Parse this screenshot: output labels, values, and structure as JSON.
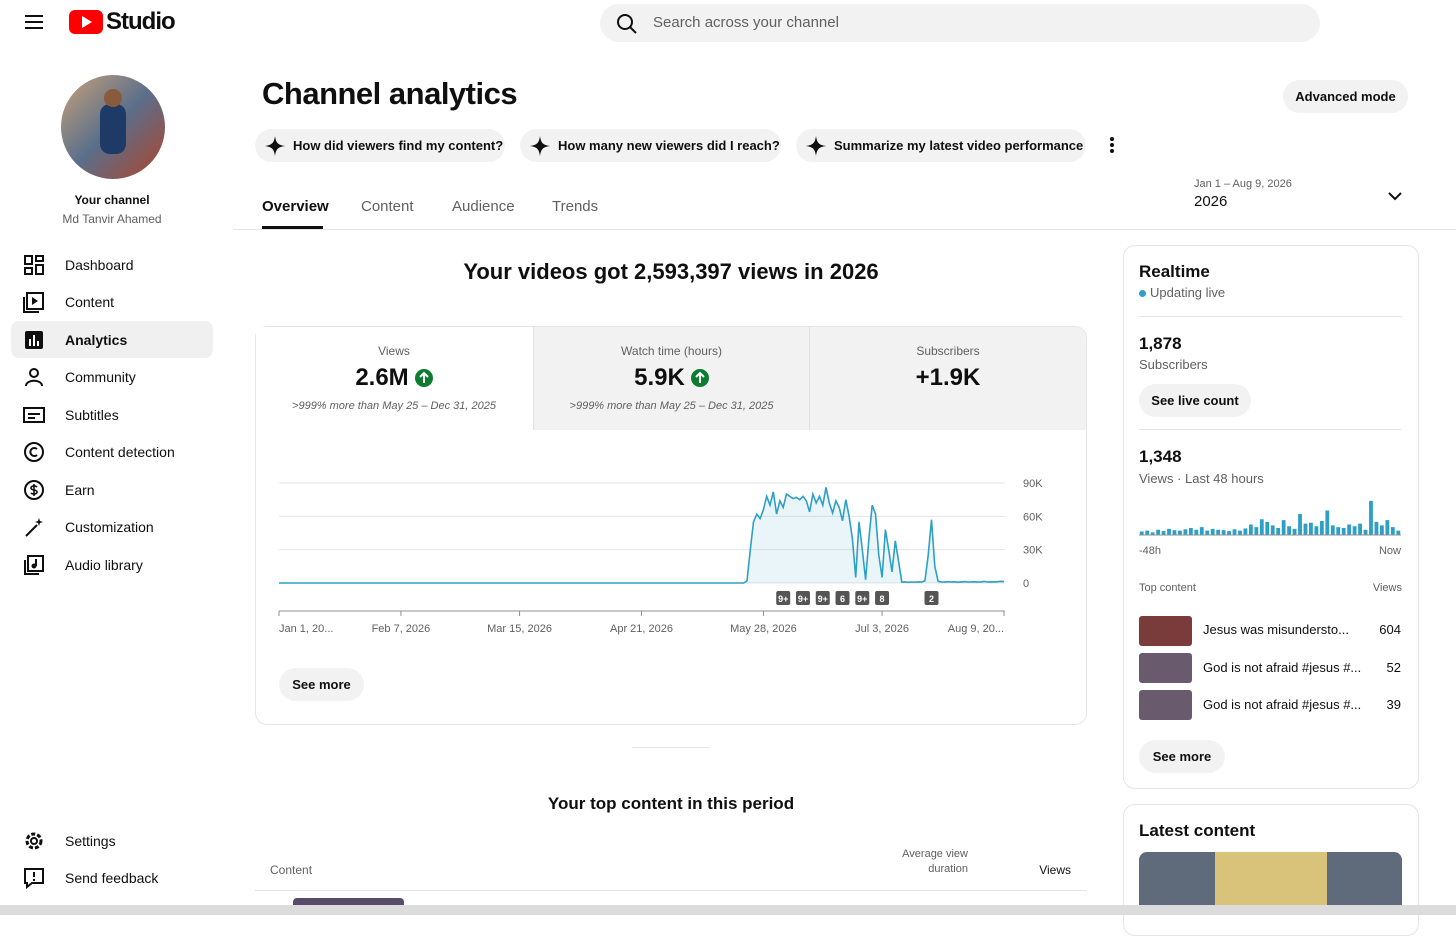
{
  "header": {
    "logo": "Studio",
    "search_placeholder": "Search across your channel"
  },
  "sidebar": {
    "channel_label": "Your channel",
    "channel_name": "Md Tanvir Ahamed",
    "nav": [
      "Dashboard",
      "Content",
      "Analytics",
      "Community",
      "Subtitles",
      "Content detection",
      "Earn",
      "Customization",
      "Audio library"
    ],
    "footer_nav": [
      "Settings",
      "Send feedback"
    ]
  },
  "page": {
    "title": "Channel analytics",
    "advanced_mode": "Advanced mode",
    "prompts": [
      "How did viewers find my content?",
      "How many new viewers did I reach?",
      "Summarize my latest video performance"
    ],
    "tabs": [
      "Overview",
      "Content",
      "Audience",
      "Trends"
    ],
    "date_range": {
      "range": "Jan 1 – Aug 9, 2026",
      "period": "2026"
    }
  },
  "overview": {
    "headline": "Your videos got 2,593,397 views in 2026",
    "metrics": [
      {
        "label": "Views",
        "value": "2.6M",
        "note": ">999% more than May 25 – Dec 31, 2025"
      },
      {
        "label": "Watch time (hours)",
        "value": "5.9K",
        "note": ">999% more than May 25 – Dec 31, 2025"
      },
      {
        "label": "Subscribers",
        "value": "+1.9K"
      }
    ],
    "see_more": "See more",
    "top_content_title": "Your top content in this period",
    "table_headers": [
      "Content",
      "Average view duration",
      "Views"
    ]
  },
  "realtime": {
    "title": "Realtime",
    "status": "Updating live",
    "subscribers_value": "1,878",
    "subscribers_label": "Subscribers",
    "live_count_button": "See live count",
    "views_value": "1,348",
    "views_label": "Views · Last 48 hours",
    "top_content_label": "Top content",
    "views_header": "Views",
    "top_content": [
      {
        "title": "Jesus was misundersto...",
        "views": 604
      },
      {
        "title": "God is not afraid #jesus #...",
        "views": 52
      },
      {
        "title": "God is not afraid #jesus #...",
        "views": 39
      }
    ],
    "see_more": "See more"
  },
  "latest": {
    "title": "Latest content"
  },
  "chart_data": [
    {
      "type": "line",
      "color": "#2e9fc6",
      "grid": true,
      "xlim": [
        "2026-01-01",
        "2026-08-09"
      ],
      "ylim": [
        0,
        90000
      ],
      "yticks": [
        0,
        {
          "value": 30000,
          "label": "30K"
        },
        {
          "value": 60000,
          "label": "60K"
        },
        {
          "value": 90000,
          "label": "90K"
        }
      ],
      "xticks": [
        {
          "value": "2026-01-01",
          "label": "Jan 1, 20..."
        },
        {
          "value": "2026-02-07",
          "label": "Feb 7, 2026"
        },
        {
          "value": "2026-03-15",
          "label": "Mar 15, 2026"
        },
        {
          "value": "2026-04-21",
          "label": "Apr 21, 2026"
        },
        {
          "value": "2026-05-28",
          "label": "May 28, 2026"
        },
        {
          "value": "2026-07-03",
          "label": "Jul 3, 2026"
        },
        {
          "value": "2026-08-09",
          "label": "Aug 9, 20..."
        }
      ],
      "x": [
        "2026-01-01",
        "2026-05-22",
        "2026-05-23",
        "2026-05-24",
        "2026-05-25",
        "2026-05-26",
        "2026-05-27",
        "2026-05-28",
        "2026-05-29",
        "2026-05-30",
        "2026-05-31",
        "2026-06-01",
        "2026-06-02",
        "2026-06-03",
        "2026-06-04",
        "2026-06-05",
        "2026-06-06",
        "2026-06-07",
        "2026-06-08",
        "2026-06-09",
        "2026-06-10",
        "2026-06-11",
        "2026-06-12",
        "2026-06-13",
        "2026-06-14",
        "2026-06-15",
        "2026-06-16",
        "2026-06-17",
        "2026-06-18",
        "2026-06-19",
        "2026-06-20",
        "2026-06-21",
        "2026-06-22",
        "2026-06-23",
        "2026-06-24",
        "2026-06-25",
        "2026-06-26",
        "2026-06-27",
        "2026-06-28",
        "2026-06-29",
        "2026-06-30",
        "2026-07-01",
        "2026-07-02",
        "2026-07-03",
        "2026-07-04",
        "2026-07-05",
        "2026-07-06",
        "2026-07-07",
        "2026-07-08",
        "2026-07-09",
        "2026-07-10",
        "2026-07-11",
        "2026-07-12",
        "2026-07-13",
        "2026-07-14",
        "2026-07-15",
        "2026-07-16",
        "2026-07-17",
        "2026-07-18",
        "2026-07-19",
        "2026-07-20",
        "2026-07-21",
        "2026-07-22",
        "2026-07-23",
        "2026-07-24",
        "2026-07-25",
        "2026-07-26",
        "2026-07-27",
        "2026-07-28",
        "2026-07-29",
        "2026-07-30",
        "2026-07-31",
        "2026-08-01",
        "2026-08-02",
        "2026-08-03",
        "2026-08-04",
        "2026-08-05",
        "2026-08-06",
        "2026-08-07",
        "2026-08-08",
        "2026-08-09"
      ],
      "values": [
        0,
        0,
        2000,
        30000,
        55000,
        62000,
        58000,
        66000,
        78000,
        70000,
        82000,
        62000,
        74000,
        68000,
        80000,
        78000,
        76000,
        77000,
        75000,
        78000,
        74000,
        64000,
        80000,
        72000,
        78000,
        70000,
        86000,
        72000,
        63000,
        74000,
        68000,
        56000,
        75000,
        60000,
        40000,
        5000,
        55000,
        30000,
        3000,
        40000,
        70000,
        62000,
        25000,
        5000,
        48000,
        30000,
        10000,
        38000,
        20000,
        800,
        1000,
        600,
        900,
        700,
        1000,
        800,
        2000,
        25000,
        57000,
        15000,
        1500,
        1000,
        800,
        1200,
        900,
        1100,
        700,
        1000,
        1300,
        900,
        1000,
        1200,
        800,
        1000,
        1400,
        900,
        1100,
        1000,
        1200,
        1500,
        1300
      ],
      "annotations": [
        {
          "x": "2026-06-03",
          "label": "9+"
        },
        {
          "x": "2026-06-09",
          "label": "9+"
        },
        {
          "x": "2026-06-15",
          "label": "9+"
        },
        {
          "x": "2026-06-21",
          "label": "6"
        },
        {
          "x": "2026-06-27",
          "label": "9+"
        },
        {
          "x": "2026-07-03",
          "label": "8"
        },
        {
          "x": "2026-07-18",
          "label": "2"
        }
      ]
    },
    {
      "type": "bar",
      "color": "#2e9fc6",
      "ylim": [
        0,
        80
      ],
      "categories": [
        "-48h",
        null,
        null,
        null,
        null,
        null,
        null,
        null,
        null,
        null,
        null,
        null,
        null,
        null,
        null,
        null,
        null,
        null,
        null,
        null,
        null,
        null,
        null,
        null,
        null,
        null,
        null,
        null,
        null,
        null,
        null,
        null,
        null,
        null,
        null,
        null,
        null,
        null,
        null,
        null,
        null,
        null,
        null,
        null,
        null,
        null,
        null,
        "Now"
      ],
      "values": [
        8,
        10,
        6,
        12,
        9,
        14,
        11,
        10,
        13,
        16,
        12,
        18,
        10,
        14,
        12,
        11,
        9,
        13,
        10,
        15,
        24,
        18,
        36,
        30,
        22,
        16,
        34,
        20,
        14,
        48,
        26,
        28,
        20,
        32,
        56,
        22,
        18,
        16,
        24,
        20,
        26,
        12,
        78,
        30,
        22,
        34,
        18,
        10
      ]
    }
  ]
}
